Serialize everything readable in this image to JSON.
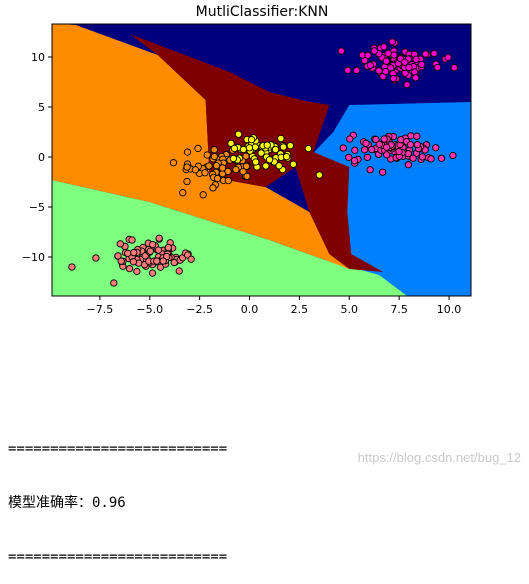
{
  "chart_data": {
    "type": "scatter",
    "title": "MutliClassifier:KNN",
    "xlabel": "",
    "ylabel": "",
    "xlim": [
      -9.9,
      11.1
    ],
    "ylim": [
      -13.9,
      13.3
    ],
    "x_ticks": [
      -7.5,
      -5.0,
      -2.5,
      0.0,
      2.5,
      5.0,
      7.5,
      10.0
    ],
    "x_tick_labels": [
      "−7.5",
      "−5.0",
      "−2.5",
      "0.0",
      "2.5",
      "5.0",
      "7.5",
      "10.0"
    ],
    "y_ticks": [
      10,
      5,
      0,
      -5,
      -10
    ],
    "y_tick_labels": [
      "10",
      "5",
      "0",
      "−5",
      "−10"
    ],
    "grid": false,
    "regions": [
      {
        "class": 0,
        "color": "#00007f"
      },
      {
        "class": 1,
        "color": "#007fff"
      },
      {
        "class": 2,
        "color": "#7fff7f"
      },
      {
        "class": 3,
        "color": "#ff8c00"
      },
      {
        "class": 4,
        "color": "#7f0000"
      }
    ],
    "series": [
      {
        "color": "#ff00cc",
        "center": [
          7.5,
          9.5
        ],
        "spread": [
          1.3,
          1.2
        ],
        "count": 95
      },
      {
        "color": "#ff33aa",
        "center": [
          7.3,
          0.8
        ],
        "spread": [
          1.4,
          1.0
        ],
        "count": 90
      },
      {
        "color": "#ff8c00",
        "center": [
          -1.5,
          -1.0
        ],
        "spread": [
          1.3,
          1.2
        ],
        "count": 55
      },
      {
        "color": "#ffff00",
        "center": [
          0.5,
          0.5
        ],
        "spread": [
          1.2,
          1.1
        ],
        "count": 60
      },
      {
        "color": "#ff7a7a",
        "center": [
          -5.0,
          -10.0
        ],
        "spread": [
          1.2,
          1.0
        ],
        "count": 85
      }
    ],
    "outliers": [
      {
        "x": -8.9,
        "y": -11.0,
        "color": "#ff7a7a"
      },
      {
        "x": -7.7,
        "y": -10.1,
        "color": "#ff7a7a"
      },
      {
        "x": -6.8,
        "y": -12.6,
        "color": "#ff7a7a"
      },
      {
        "x": 3.5,
        "y": -1.8,
        "color": "#ffff00"
      },
      {
        "x": 4.7,
        "y": 0.9,
        "color": "#ff33aa"
      },
      {
        "x": 4.6,
        "y": 10.6,
        "color": "#ff00cc"
      }
    ]
  },
  "console": {
    "line1": "==========================",
    "line2": "模型准确率：0.96",
    "line3": "=========================="
  },
  "watermark": "https://blog.csdn.net/bug_12"
}
